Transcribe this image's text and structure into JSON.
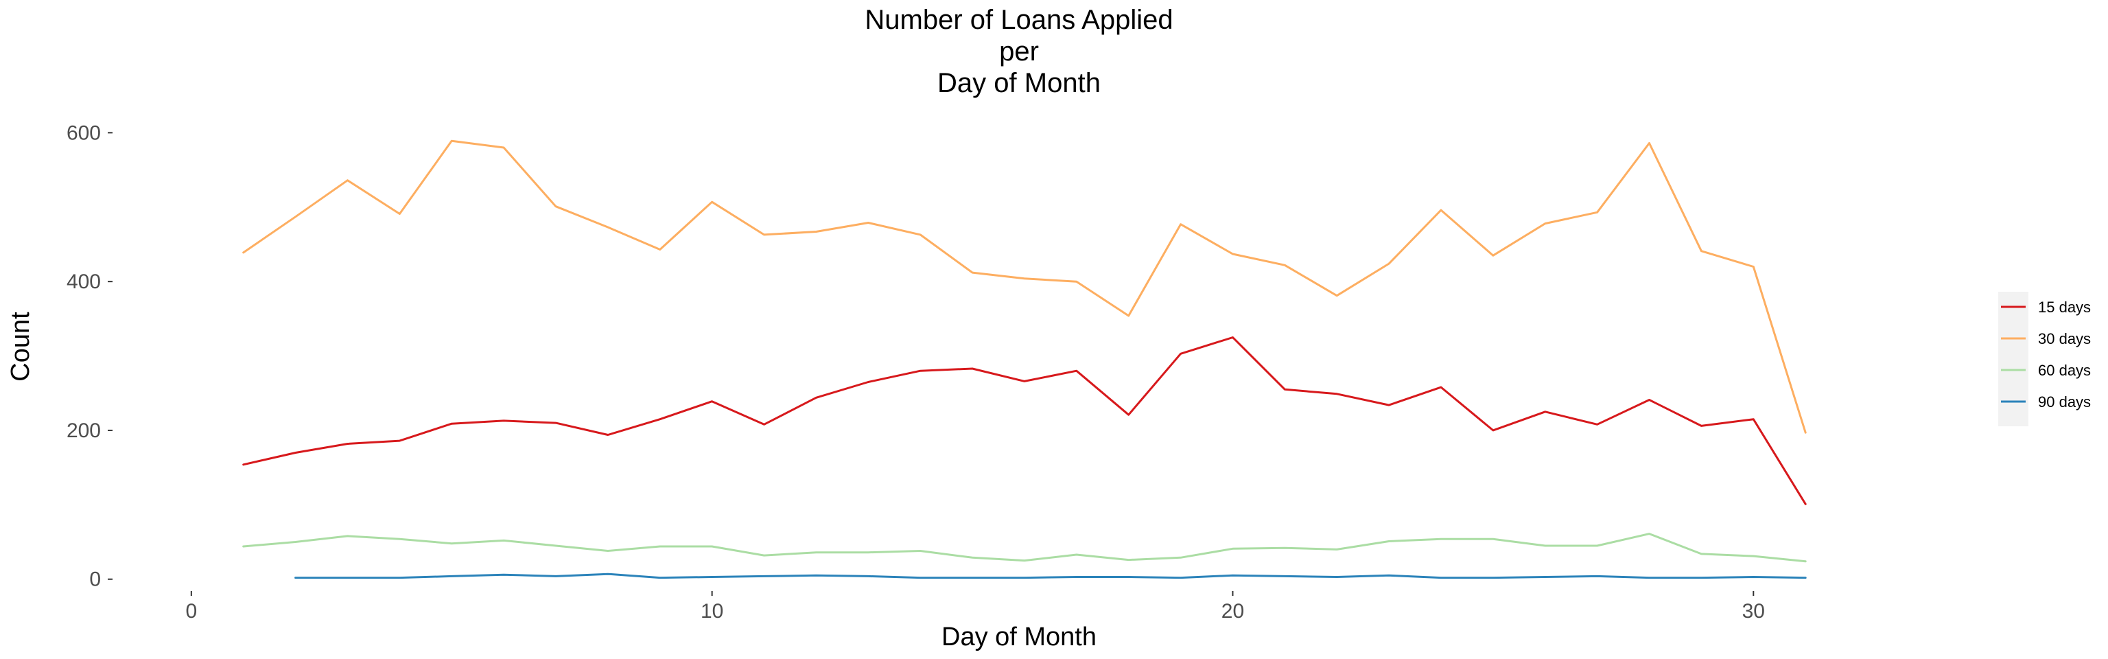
{
  "chart_data": {
    "type": "line",
    "title": [
      "Number of Loans Applied",
      "per",
      "Day of Month"
    ],
    "xlabel": "Day of Month",
    "ylabel": "Count",
    "xlim": [
      -1.5,
      32.5
    ],
    "ylim": [
      -15,
      640
    ],
    "x_ticks": [
      0,
      10,
      20,
      30
    ],
    "y_ticks": [
      0,
      200,
      400,
      600
    ],
    "grid": false,
    "legend_position": "right",
    "series": [
      {
        "name": "15 days",
        "color": "#d7191c",
        "x": [
          1,
          2,
          3,
          4,
          5,
          6,
          7,
          8,
          9,
          10,
          11,
          12,
          13,
          14,
          15,
          16,
          17,
          18,
          19,
          20,
          21,
          22,
          23,
          24,
          25,
          26,
          27,
          28,
          29,
          30,
          31
        ],
        "values": [
          154,
          170,
          182,
          186,
          209,
          213,
          210,
          194,
          215,
          239,
          208,
          244,
          265,
          280,
          283,
          266,
          280,
          221,
          303,
          325,
          255,
          249,
          234,
          258,
          200,
          225,
          208,
          241,
          206,
          215,
          101
        ]
      },
      {
        "name": "30 days",
        "color": "#fdae61",
        "x": [
          1,
          2,
          3,
          4,
          5,
          6,
          7,
          8,
          9,
          10,
          11,
          12,
          13,
          14,
          15,
          16,
          17,
          18,
          19,
          20,
          21,
          22,
          23,
          24,
          25,
          26,
          27,
          28,
          29,
          30,
          31
        ],
        "values": [
          439,
          487,
          536,
          491,
          589,
          580,
          501,
          473,
          443,
          507,
          463,
          467,
          479,
          463,
          412,
          404,
          400,
          354,
          477,
          437,
          422,
          381,
          424,
          496,
          435,
          478,
          493,
          586,
          441,
          420,
          197
        ]
      },
      {
        "name": "60 days",
        "color": "#abdda4",
        "x": [
          1,
          2,
          3,
          4,
          5,
          6,
          7,
          8,
          9,
          10,
          11,
          12,
          13,
          14,
          15,
          16,
          17,
          18,
          19,
          20,
          21,
          22,
          23,
          24,
          25,
          26,
          27,
          28,
          29,
          30,
          31
        ],
        "values": [
          44,
          50,
          58,
          54,
          48,
          52,
          45,
          38,
          44,
          44,
          32,
          36,
          36,
          38,
          29,
          25,
          33,
          26,
          29,
          41,
          42,
          40,
          51,
          54,
          54,
          45,
          45,
          61,
          34,
          31,
          24
        ]
      },
      {
        "name": "90 days",
        "color": "#2b83ba",
        "x": [
          2,
          3,
          4,
          5,
          6,
          7,
          8,
          9,
          10,
          11,
          12,
          13,
          14,
          15,
          16,
          17,
          18,
          19,
          20,
          21,
          22,
          23,
          24,
          25,
          26,
          27,
          28,
          29,
          30,
          31
        ],
        "values": [
          2,
          2,
          2,
          4,
          6,
          4,
          7,
          2,
          3,
          4,
          5,
          4,
          2,
          2,
          2,
          3,
          3,
          2,
          5,
          4,
          3,
          5,
          2,
          2,
          3,
          4,
          2,
          2,
          3,
          2
        ]
      }
    ]
  }
}
